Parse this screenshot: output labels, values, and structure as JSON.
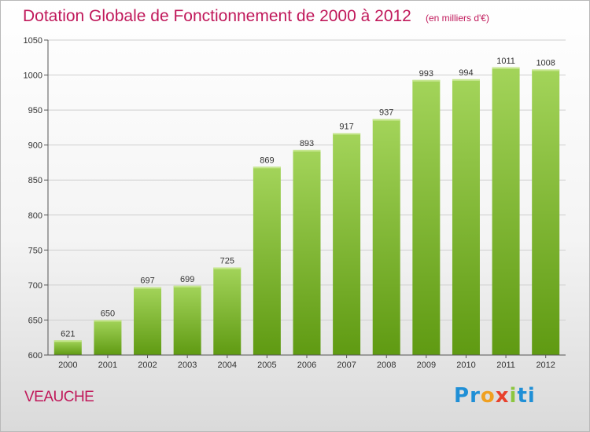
{
  "header": {
    "title": "Dotation Globale de Fonctionnement de 2000 à 2012",
    "unit": "(en milliers d'€)"
  },
  "footer": {
    "commune": "VEAUCHE",
    "logo_letters": [
      "P",
      "r",
      "o",
      "x",
      "i",
      "t",
      "i"
    ]
  },
  "colors": {
    "title": "#c0185a",
    "bar_light": "#a3d45a",
    "bar_dark": "#5f9a12",
    "logo": [
      "#1f8fd6",
      "#1f8fd6",
      "#f0a020",
      "#e8412c",
      "#8cc63f",
      "#1f8fd6",
      "#1f8fd6"
    ]
  },
  "chart_data": {
    "type": "bar",
    "title": "Dotation Globale de Fonctionnement de 2000 à 2012",
    "categories": [
      "2000",
      "2001",
      "2002",
      "2003",
      "2004",
      "2005",
      "2006",
      "2007",
      "2008",
      "2009",
      "2010",
      "2011",
      "2012"
    ],
    "values": [
      621,
      650,
      697,
      699,
      725,
      869,
      893,
      917,
      937,
      993,
      994,
      1011,
      1008
    ],
    "ylim": [
      600,
      1050
    ],
    "yticks": [
      600,
      650,
      700,
      750,
      800,
      850,
      900,
      950,
      1000,
      1050
    ],
    "grid": true
  }
}
